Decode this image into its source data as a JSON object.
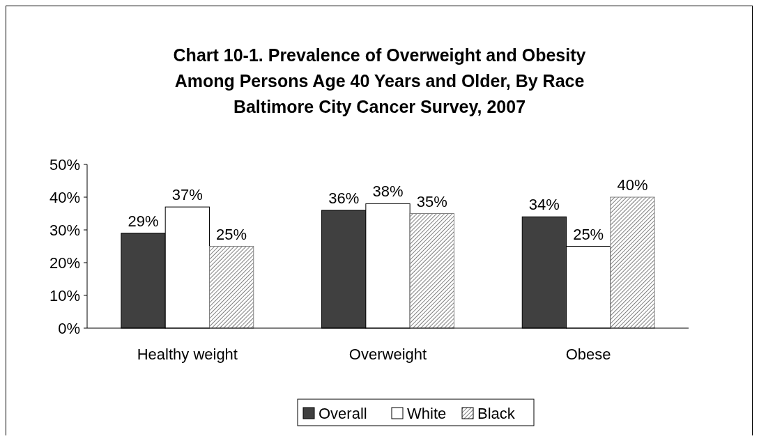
{
  "chart_data": {
    "type": "bar",
    "title": "Chart 10-1.  Prevalence of Overweight and Obesity\nAmong Persons Age 40 Years and Older, By Race\nBaltimore City Cancer Survey, 2007",
    "categories": [
      "Healthy weight",
      "Overweight",
      "Obese"
    ],
    "series": [
      {
        "name": "Overall",
        "color": "#404040",
        "values": [
          29,
          36,
          34
        ],
        "value_labels": [
          "29%",
          "36%",
          "34%"
        ]
      },
      {
        "name": "White",
        "color": "#ffffff",
        "values": [
          37,
          38,
          25
        ],
        "value_labels": [
          "37%",
          "38%",
          "25%"
        ]
      },
      {
        "name": "Black",
        "color": "#808080",
        "values": [
          25,
          35,
          40
        ],
        "value_labels": [
          "25%",
          "35%",
          "40%"
        ]
      }
    ],
    "ylim": [
      0,
      50
    ],
    "yticks": [
      {
        "value": 0,
        "label": "0%"
      },
      {
        "value": 10,
        "label": "10%"
      },
      {
        "value": 20,
        "label": "20%"
      },
      {
        "value": 30,
        "label": "30%"
      },
      {
        "value": 40,
        "label": "40%"
      },
      {
        "value": 50,
        "label": "50%"
      }
    ],
    "grid": false,
    "legend": "bottom"
  }
}
